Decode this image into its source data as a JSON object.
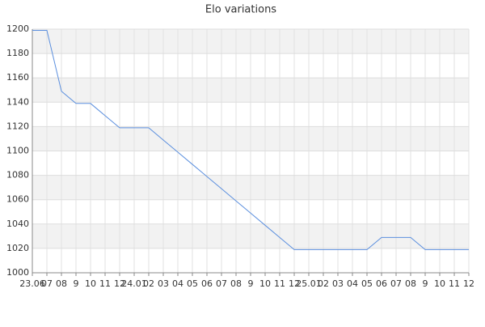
{
  "chart_data": {
    "type": "line",
    "title": "Elo variations",
    "categories": [
      "23.06",
      "07",
      "08",
      "9",
      "10",
      "11",
      "12",
      "24.01",
      "02",
      "03",
      "04",
      "05",
      "06",
      "07",
      "08",
      "9",
      "10",
      "11",
      "12",
      "25.01",
      "02",
      "03",
      "04",
      "05",
      "06",
      "07",
      "08",
      "9",
      "10",
      "11",
      "12"
    ],
    "values": [
      1199,
      1199,
      1149,
      1139,
      1139,
      1129,
      1119,
      1119,
      1119,
      1109,
      1099,
      1089,
      1079,
      1069,
      1059,
      1049,
      1039,
      1029,
      1019,
      1019,
      1019,
      1019,
      1019,
      1019,
      1029,
      1029,
      1029,
      1019,
      1019,
      1019,
      1019
    ],
    "color": "#5b8fde",
    "ylim": [
      1000,
      1200
    ],
    "yticks": [
      1000,
      1020,
      1040,
      1060,
      1080,
      1100,
      1120,
      1140,
      1160,
      1180,
      1200
    ],
    "grid": true
  }
}
